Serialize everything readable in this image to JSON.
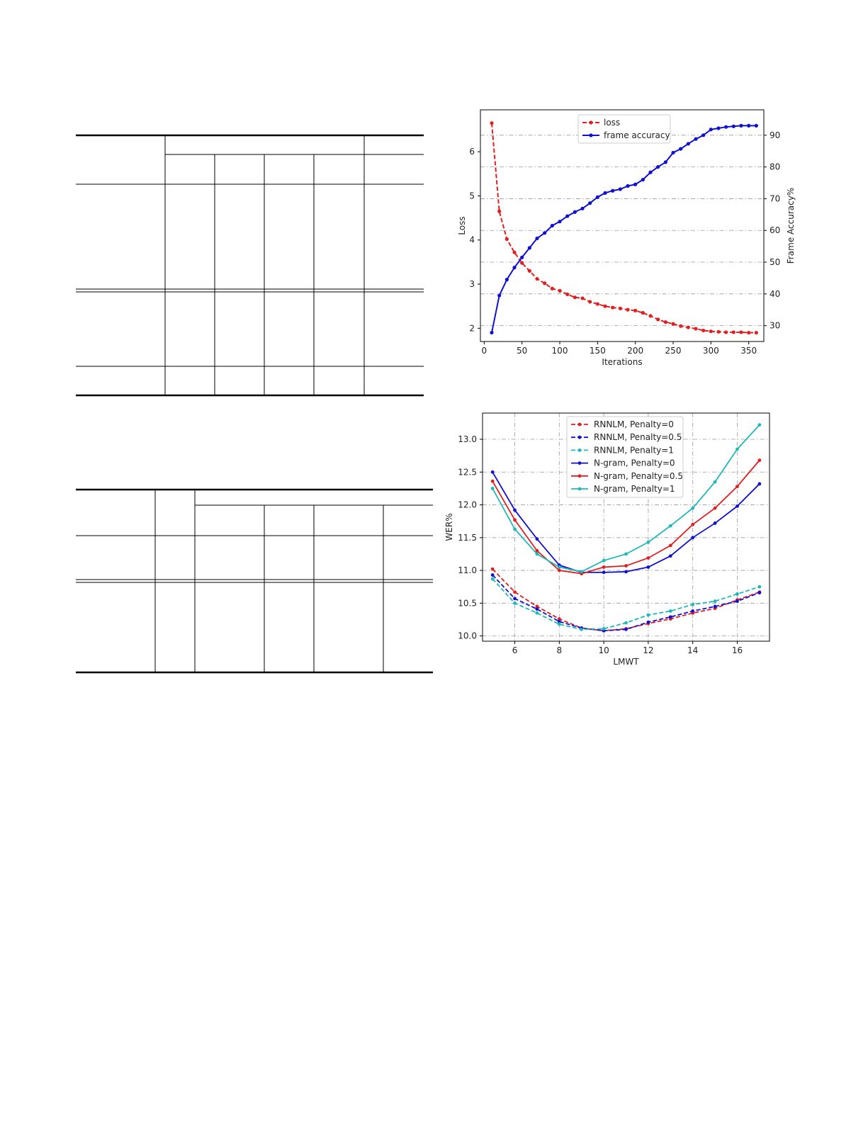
{
  "chart_data": [
    {
      "type": "line",
      "xlabel": "Iterations",
      "ylabel": "Loss",
      "y2label": "Frame Accuracy%",
      "xlim": [
        -5,
        370
      ],
      "ylim": [
        1.7,
        6.95
      ],
      "y2lim": [
        25,
        98
      ],
      "xticks": [
        0,
        50,
        100,
        150,
        200,
        250,
        300,
        350
      ],
      "yticks": [
        2,
        3,
        4,
        5,
        6
      ],
      "y2ticks": [
        30,
        40,
        50,
        60,
        70,
        80,
        90
      ],
      "grid": "horizontal dash-dot",
      "legend": "top-center",
      "series": [
        {
          "name": "loss",
          "axis": "left",
          "style": "dashed",
          "color": "#e02020",
          "x": [
            10,
            20,
            30,
            40,
            50,
            60,
            70,
            80,
            90,
            100,
            110,
            120,
            130,
            140,
            150,
            160,
            170,
            180,
            190,
            200,
            210,
            220,
            230,
            240,
            250,
            260,
            270,
            280,
            290,
            300,
            310,
            320,
            330,
            340,
            350,
            360
          ],
          "values": [
            6.65,
            4.65,
            4.02,
            3.72,
            3.48,
            3.3,
            3.12,
            3.02,
            2.9,
            2.85,
            2.77,
            2.7,
            2.68,
            2.6,
            2.55,
            2.5,
            2.47,
            2.45,
            2.42,
            2.4,
            2.35,
            2.28,
            2.2,
            2.14,
            2.1,
            2.05,
            2.02,
            1.99,
            1.95,
            1.93,
            1.92,
            1.91,
            1.91,
            1.91,
            1.9,
            1.9
          ]
        },
        {
          "name": "frame accuracy",
          "axis": "right",
          "style": "solid",
          "color": "#1010d0",
          "x": [
            10,
            20,
            30,
            40,
            50,
            60,
            70,
            80,
            90,
            100,
            110,
            120,
            130,
            140,
            150,
            160,
            170,
            180,
            190,
            200,
            210,
            220,
            230,
            240,
            250,
            260,
            270,
            280,
            290,
            300,
            310,
            320,
            330,
            340,
            350,
            360
          ],
          "values": [
            27.8,
            39.5,
            44.5,
            48.3,
            51.5,
            54.5,
            57.5,
            59.2,
            61.5,
            62.8,
            64.5,
            65.8,
            66.9,
            68.6,
            70.5,
            71.8,
            72.5,
            73,
            74,
            74.5,
            76,
            78.3,
            80,
            81.5,
            84.5,
            85.7,
            87.3,
            88.8,
            90,
            91.8,
            92.2,
            92.6,
            92.8,
            93,
            93,
            93
          ]
        }
      ]
    },
    {
      "type": "line",
      "xlabel": "LMWT",
      "ylabel": "WER%",
      "xlim": [
        4.55,
        17.45
      ],
      "ylim": [
        9.92,
        13.4
      ],
      "xticks": [
        6,
        8,
        10,
        12,
        14,
        16
      ],
      "yticks": [
        10.0,
        10.5,
        11.0,
        11.5,
        12.0,
        12.5,
        13.0
      ],
      "grid": "both dash-dot",
      "legend": "top-center",
      "x": [
        5,
        6,
        7,
        8,
        9,
        10,
        11,
        12,
        13,
        14,
        15,
        16,
        17
      ],
      "series": [
        {
          "name": "RNNLM, Penalty=0",
          "style": "dashed",
          "color": "#e02020",
          "values": [
            11.02,
            10.67,
            10.45,
            10.26,
            10.12,
            10.08,
            10.11,
            10.19,
            10.26,
            10.35,
            10.42,
            10.55,
            10.67
          ]
        },
        {
          "name": "RNNLM, Penalty=0.5",
          "style": "dashed",
          "color": "#1010d0",
          "values": [
            10.93,
            10.57,
            10.41,
            10.22,
            10.12,
            10.08,
            10.1,
            10.21,
            10.29,
            10.38,
            10.45,
            10.53,
            10.66
          ]
        },
        {
          "name": "RNNLM, Penalty=1",
          "style": "dashed",
          "color": "#20b8b8",
          "values": [
            10.87,
            10.5,
            10.35,
            10.18,
            10.1,
            10.11,
            10.2,
            10.32,
            10.38,
            10.48,
            10.53,
            10.64,
            10.75
          ]
        },
        {
          "name": "N-gram, Penalty=0",
          "style": "solid",
          "color": "#1010d0",
          "values": [
            12.5,
            11.92,
            11.48,
            11.08,
            10.97,
            10.97,
            10.98,
            11.05,
            11.22,
            11.5,
            11.72,
            11.98,
            12.32
          ]
        },
        {
          "name": "N-gram, Penalty=0.5",
          "style": "solid",
          "color": "#e02020",
          "values": [
            12.36,
            11.77,
            11.3,
            11.0,
            10.95,
            11.05,
            11.07,
            11.19,
            11.38,
            11.7,
            11.95,
            12.28,
            12.68
          ]
        },
        {
          "name": "N-gram, Penalty=1",
          "style": "solid",
          "color": "#20b8b8",
          "values": [
            12.25,
            11.63,
            11.25,
            11.05,
            10.98,
            11.15,
            11.25,
            11.43,
            11.68,
            11.95,
            12.35,
            12.85,
            13.22
          ]
        }
      ]
    }
  ]
}
